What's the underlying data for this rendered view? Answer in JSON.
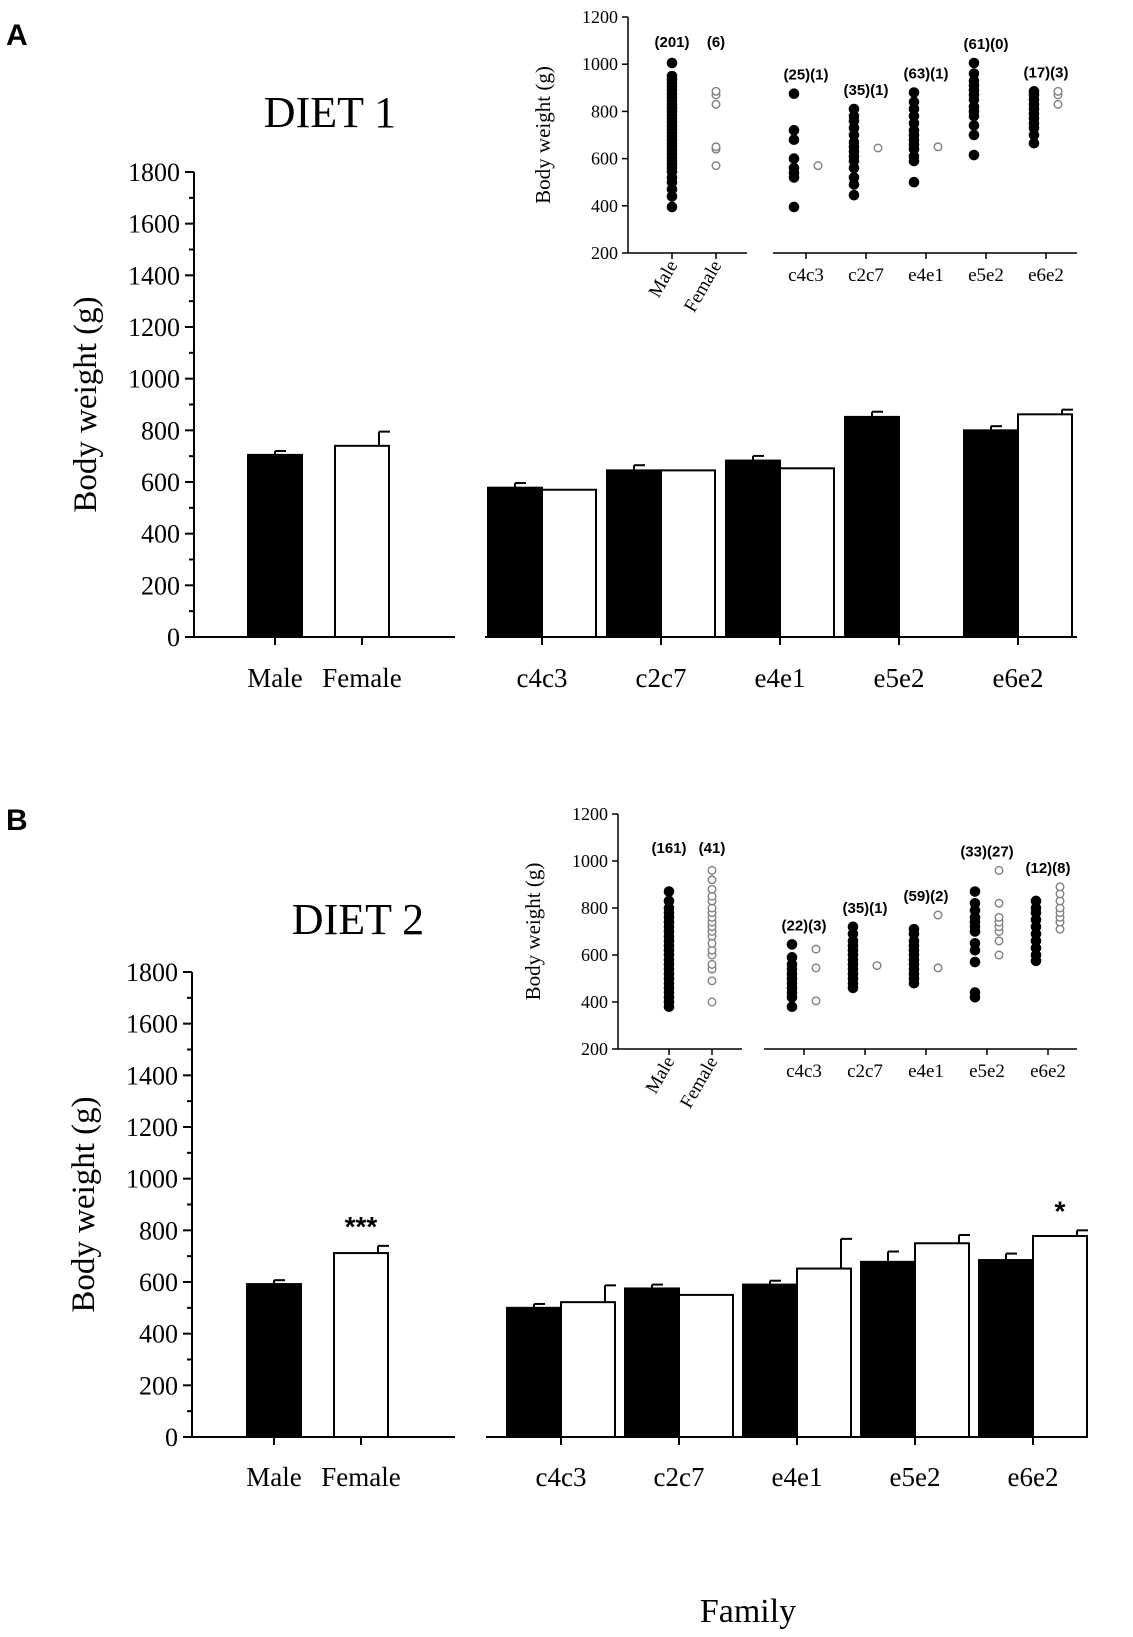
{
  "figure": {
    "panel_a_label": "A",
    "panel_b_label": "B",
    "x_axis_title": "Family"
  },
  "colors": {
    "male_fill": "#000000",
    "female_fill": "#ffffff",
    "female_point": "#808080",
    "axis": "#000000"
  },
  "chart_data": [
    {
      "id": "a_main",
      "type": "bar",
      "title": "DIET 1",
      "ylabel": "Body weight (g)",
      "ylim": [
        0,
        1800
      ],
      "yticks": [
        0,
        200,
        400,
        600,
        800,
        1000,
        1200,
        1400,
        1600,
        1800
      ],
      "sex_groups": {
        "categories": [
          "Male",
          "Female"
        ],
        "values": [
          705,
          740
        ],
        "errors": [
          15,
          55
        ],
        "annotation": ""
      },
      "family_groups": {
        "categories": [
          "c4c3",
          "c2c7",
          "e4e1",
          "e5e2",
          "e6e2"
        ],
        "series": [
          {
            "name": "Male",
            "values": [
              578,
              645,
              683,
              852,
              800
            ],
            "errors": [
              18,
              20,
              18,
              20,
              16
            ]
          },
          {
            "name": "Female",
            "values": [
              570,
              645,
              653,
              null,
              862
            ],
            "errors": [
              0,
              0,
              0,
              null,
              18
            ]
          }
        ],
        "annotations": [
          "",
          "",
          "",
          "",
          ""
        ]
      }
    },
    {
      "id": "a_inset",
      "type": "scatter",
      "ylabel": "Body weight (g)",
      "ylim": [
        200,
        1200
      ],
      "yticks": [
        200,
        400,
        600,
        800,
        1000,
        1200
      ],
      "sex_groups": {
        "categories": [
          "Male",
          "Female"
        ],
        "counts": [
          "(201)",
          "(6)"
        ],
        "male_points": [
          395,
          440,
          470,
          500,
          520,
          545,
          560,
          575,
          590,
          605,
          620,
          635,
          650,
          665,
          680,
          695,
          710,
          725,
          740,
          755,
          770,
          785,
          800,
          815,
          830,
          845,
          860,
          875,
          890,
          905,
          920,
          935,
          950,
          1005
        ],
        "female_points": [
          570,
          640,
          650,
          830,
          870,
          885
        ]
      },
      "family_groups": {
        "categories": [
          "c4c3",
          "c2c7",
          "e4e1",
          "e5e2",
          "e6e2"
        ],
        "counts": [
          [
            "(25)",
            "(1)"
          ],
          [
            "(35)",
            "(1)"
          ],
          [
            "(63)",
            "(1)"
          ],
          [
            "(61)",
            "(0)"
          ],
          [
            "(17)",
            "(3)"
          ]
        ],
        "male_points": [
          [
            395,
            520,
            540,
            560,
            600,
            680,
            720,
            875
          ],
          [
            445,
            490,
            520,
            560,
            590,
            610,
            630,
            650,
            670,
            700,
            730,
            760,
            780,
            810
          ],
          [
            500,
            590,
            610,
            640,
            660,
            680,
            700,
            720,
            750,
            780,
            810,
            840,
            880
          ],
          [
            615,
            700,
            740,
            780,
            800,
            820,
            850,
            870,
            890,
            910,
            930,
            960,
            1005
          ],
          [
            665,
            700,
            730,
            750,
            770,
            790,
            810,
            830,
            850,
            870,
            885
          ]
        ],
        "female_points": [
          [
            570
          ],
          [
            645
          ],
          [
            650
          ],
          [],
          [
            830,
            870,
            885
          ]
        ]
      }
    },
    {
      "id": "b_main",
      "type": "bar",
      "title": "DIET 2",
      "ylabel": "Body weight (g)",
      "ylim": [
        0,
        1800
      ],
      "yticks": [
        0,
        200,
        400,
        600,
        800,
        1000,
        1200,
        1400,
        1600,
        1800
      ],
      "sex_groups": {
        "categories": [
          "Male",
          "Female"
        ],
        "values": [
          592,
          712
        ],
        "errors": [
          15,
          28
        ],
        "annotation": "***"
      },
      "family_groups": {
        "categories": [
          "c4c3",
          "c2c7",
          "e4e1",
          "e5e2",
          "e6e2"
        ],
        "series": [
          {
            "name": "Male",
            "values": [
              500,
              575,
              590,
              678,
              685
            ],
            "errors": [
              15,
              15,
              15,
              40,
              25
            ]
          },
          {
            "name": "Female",
            "values": [
              522,
              550,
              652,
              750,
              778
            ],
            "errors": [
              65,
              0,
              115,
              32,
              22
            ]
          }
        ],
        "annotations": [
          "",
          "",
          "",
          "",
          "*"
        ]
      }
    },
    {
      "id": "b_inset",
      "type": "scatter",
      "ylabel": "Body weight (g)",
      "ylim": [
        200,
        1200
      ],
      "yticks": [
        200,
        400,
        600,
        800,
        1000,
        1200
      ],
      "sex_groups": {
        "categories": [
          "Male",
          "Female"
        ],
        "counts": [
          "(161)",
          "(41)"
        ],
        "male_points": [
          380,
          400,
          420,
          440,
          460,
          480,
          500,
          520,
          540,
          560,
          580,
          600,
          620,
          640,
          660,
          680,
          700,
          720,
          740,
          760,
          780,
          800,
          830,
          870
        ],
        "female_points": [
          400,
          490,
          540,
          560,
          600,
          620,
          650,
          680,
          700,
          720,
          740,
          760,
          780,
          800,
          830,
          850,
          880,
          920,
          960
        ]
      },
      "family_groups": {
        "categories": [
          "c4c3",
          "c2c7",
          "e4e1",
          "e5e2",
          "e6e2"
        ],
        "counts": [
          [
            "(22)",
            "(3)"
          ],
          [
            "(35)",
            "(1)"
          ],
          [
            "(59)",
            "(2)"
          ],
          [
            "(33)",
            "(27)"
          ],
          [
            "(12)",
            "(8)"
          ]
        ],
        "male_points": [
          [
            380,
            420,
            440,
            460,
            480,
            500,
            520,
            540,
            560,
            590,
            645
          ],
          [
            460,
            480,
            500,
            520,
            540,
            560,
            580,
            600,
            620,
            640,
            660,
            690,
            720
          ],
          [
            480,
            500,
            520,
            540,
            560,
            580,
            600,
            620,
            640,
            660,
            690,
            710
          ],
          [
            420,
            440,
            570,
            620,
            650,
            700,
            720,
            740,
            760,
            790,
            820,
            870
          ],
          [
            575,
            600,
            630,
            660,
            690,
            720,
            750,
            780,
            800,
            830
          ]
        ],
        "female_points": [
          [
            405,
            545,
            625
          ],
          [
            555
          ],
          [
            545,
            770
          ],
          [
            600,
            660,
            700,
            720,
            740,
            760,
            820,
            960
          ],
          [
            710,
            740,
            760,
            780,
            800,
            830,
            860,
            890
          ]
        ]
      }
    }
  ]
}
